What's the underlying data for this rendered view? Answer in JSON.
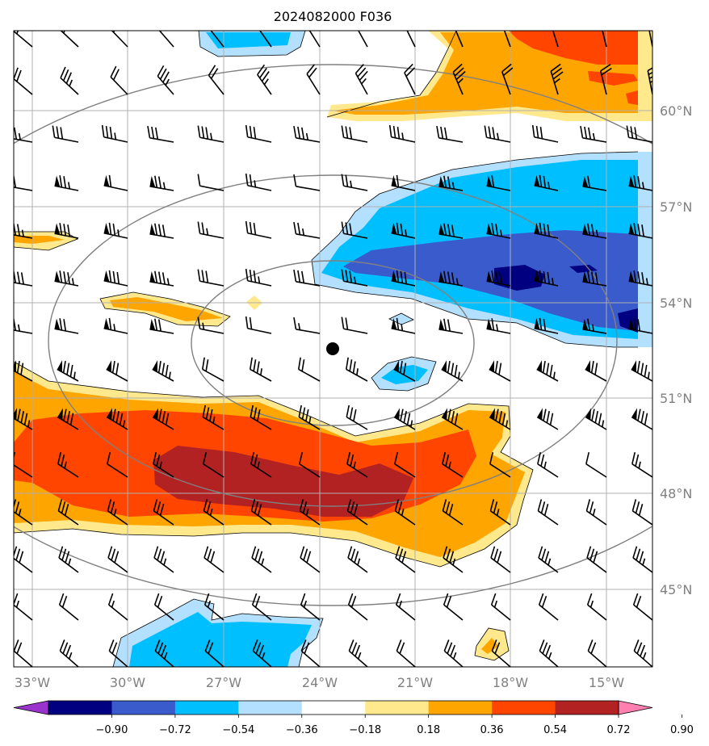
{
  "title": "2024082000 F036",
  "map": {
    "lon_range": [
      -34,
      -14
    ],
    "lat_range": [
      42.5,
      62.5
    ],
    "lon_labels": [
      "33°W",
      "30°W",
      "27°W",
      "24°W",
      "21°W",
      "18°W",
      "15°W"
    ],
    "lat_labels": [
      "45°N",
      "48°N",
      "51°N",
      "54°N",
      "57°N",
      "60°N"
    ],
    "center_marker": {
      "lon": -24.0,
      "lat": 52.5
    },
    "grid_color": "#b0b0b0",
    "contour_color": "#808080"
  },
  "colorbar": {
    "ticks": [
      "−0.90",
      "−0.72",
      "−0.54",
      "−0.36",
      "−0.18",
      "0.18",
      "0.36",
      "0.54",
      "0.72",
      "0.90"
    ],
    "colors": [
      "#9933cc",
      "#000080",
      "#3a5bcc",
      "#00bfff",
      "#b3e0ff",
      "#ffffff",
      "#ffe98c",
      "#ffa500",
      "#ff4500",
      "#b22222",
      "#ff80b0"
    ]
  }
}
